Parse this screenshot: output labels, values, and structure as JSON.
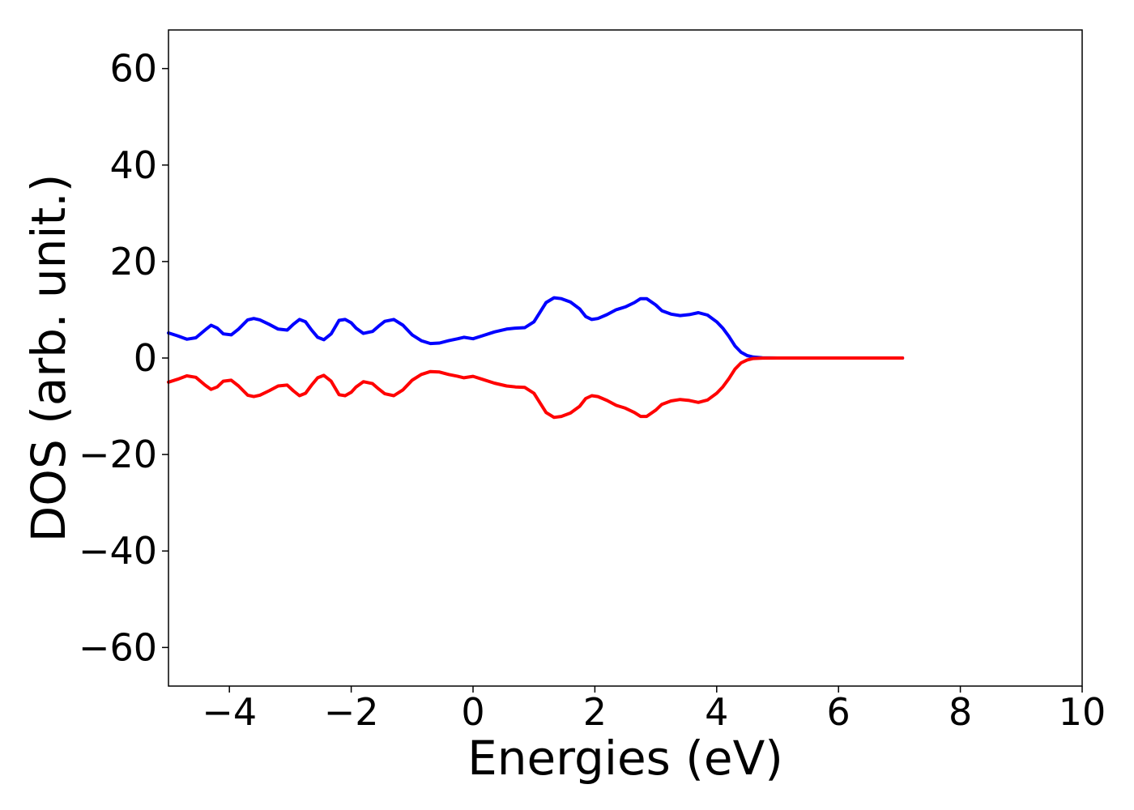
{
  "chart_data": {
    "type": "line",
    "xlabel": "Energies (eV)",
    "ylabel": "DOS (arb. unit.)",
    "xlim": [
      -5,
      10
    ],
    "ylim": [
      -68,
      68
    ],
    "xticks": [
      -4,
      -2,
      0,
      2,
      4,
      6,
      8,
      10
    ],
    "xtick_labels": [
      "−4",
      "−2",
      "0",
      "2",
      "4",
      "6",
      "8",
      "10"
    ],
    "yticks": [
      60,
      40,
      20,
      0,
      -20,
      -40,
      -60
    ],
    "ytick_labels": [
      "60",
      "40",
      "20",
      "0",
      "−20",
      "−40",
      "−60"
    ],
    "grid": false,
    "series": [
      {
        "color": "#0000ff",
        "x": [
          -5.0,
          -4.85,
          -4.7,
          -4.55,
          -4.4,
          -4.3,
          -4.2,
          -4.1,
          -3.97,
          -3.85,
          -3.7,
          -3.6,
          -3.5,
          -3.35,
          -3.2,
          -3.05,
          -2.95,
          -2.85,
          -2.75,
          -2.65,
          -2.55,
          -2.45,
          -2.33,
          -2.2,
          -2.1,
          -2.0,
          -1.92,
          -1.8,
          -1.65,
          -1.55,
          -1.45,
          -1.3,
          -1.15,
          -1.0,
          -0.85,
          -0.7,
          -0.55,
          -0.4,
          -0.25,
          -0.15,
          0.0,
          0.15,
          0.35,
          0.55,
          0.7,
          0.85,
          1.0,
          1.1,
          1.2,
          1.33,
          1.45,
          1.6,
          1.75,
          1.85,
          1.95,
          2.05,
          2.2,
          2.35,
          2.5,
          2.65,
          2.75,
          2.85,
          3.0,
          3.1,
          3.25,
          3.4,
          3.55,
          3.7,
          3.85,
          4.0,
          4.1,
          4.2,
          4.3,
          4.4,
          4.5,
          4.6,
          4.75,
          5.0,
          6.0,
          7.05
        ],
        "values": [
          5.2,
          4.6,
          3.9,
          4.2,
          5.8,
          6.8,
          6.2,
          5.0,
          4.8,
          6.0,
          7.9,
          8.2,
          7.9,
          7.0,
          6.0,
          5.8,
          7.0,
          8.0,
          7.5,
          5.8,
          4.3,
          3.8,
          5.0,
          7.8,
          8.0,
          7.3,
          6.2,
          5.1,
          5.5,
          6.6,
          7.6,
          8.0,
          6.8,
          4.8,
          3.6,
          3.0,
          3.1,
          3.6,
          4.0,
          4.3,
          4.0,
          4.6,
          5.4,
          6.0,
          6.2,
          6.3,
          7.5,
          9.5,
          11.5,
          12.5,
          12.3,
          11.6,
          10.2,
          8.6,
          8.0,
          8.2,
          9.0,
          10.0,
          10.6,
          11.5,
          12.3,
          12.3,
          11.0,
          9.8,
          9.1,
          8.8,
          9.0,
          9.4,
          8.9,
          7.5,
          6.2,
          4.5,
          2.5,
          1.2,
          0.5,
          0.2,
          0.05,
          0.0,
          0.0,
          0.0
        ]
      },
      {
        "color": "#ff0000",
        "x": [
          -5.0,
          -4.85,
          -4.7,
          -4.55,
          -4.4,
          -4.3,
          -4.2,
          -4.1,
          -3.97,
          -3.85,
          -3.7,
          -3.6,
          -3.5,
          -3.35,
          -3.2,
          -3.05,
          -2.95,
          -2.85,
          -2.75,
          -2.65,
          -2.55,
          -2.45,
          -2.33,
          -2.2,
          -2.1,
          -2.0,
          -1.92,
          -1.8,
          -1.65,
          -1.55,
          -1.45,
          -1.3,
          -1.15,
          -1.0,
          -0.85,
          -0.7,
          -0.55,
          -0.4,
          -0.25,
          -0.15,
          0.0,
          0.15,
          0.35,
          0.55,
          0.7,
          0.85,
          1.0,
          1.1,
          1.2,
          1.33,
          1.45,
          1.6,
          1.75,
          1.85,
          1.95,
          2.05,
          2.2,
          2.35,
          2.5,
          2.65,
          2.75,
          2.85,
          3.0,
          3.1,
          3.25,
          3.4,
          3.55,
          3.7,
          3.85,
          4.0,
          4.1,
          4.2,
          4.3,
          4.4,
          4.5,
          4.6,
          4.75,
          5.0,
          6.0,
          7.05
        ],
        "values": [
          -5.0,
          -4.4,
          -3.7,
          -4.0,
          -5.6,
          -6.5,
          -6.0,
          -4.8,
          -4.6,
          -5.8,
          -7.7,
          -8.0,
          -7.7,
          -6.8,
          -5.8,
          -5.6,
          -6.8,
          -7.8,
          -7.3,
          -5.6,
          -4.1,
          -3.6,
          -4.8,
          -7.6,
          -7.8,
          -7.1,
          -6.0,
          -4.9,
          -5.3,
          -6.4,
          -7.4,
          -7.8,
          -6.6,
          -4.6,
          -3.4,
          -2.8,
          -2.9,
          -3.4,
          -3.8,
          -4.1,
          -3.8,
          -4.4,
          -5.2,
          -5.8,
          -6.0,
          -6.1,
          -7.3,
          -9.3,
          -11.3,
          -12.3,
          -12.1,
          -11.4,
          -10.0,
          -8.4,
          -7.8,
          -8.0,
          -8.8,
          -9.8,
          -10.4,
          -11.3,
          -12.1,
          -12.1,
          -10.8,
          -9.6,
          -8.9,
          -8.6,
          -8.8,
          -9.2,
          -8.7,
          -7.3,
          -6.0,
          -4.3,
          -2.3,
          -1.0,
          -0.4,
          -0.1,
          -0.02,
          0.0,
          0.0,
          0.0
        ]
      }
    ]
  }
}
